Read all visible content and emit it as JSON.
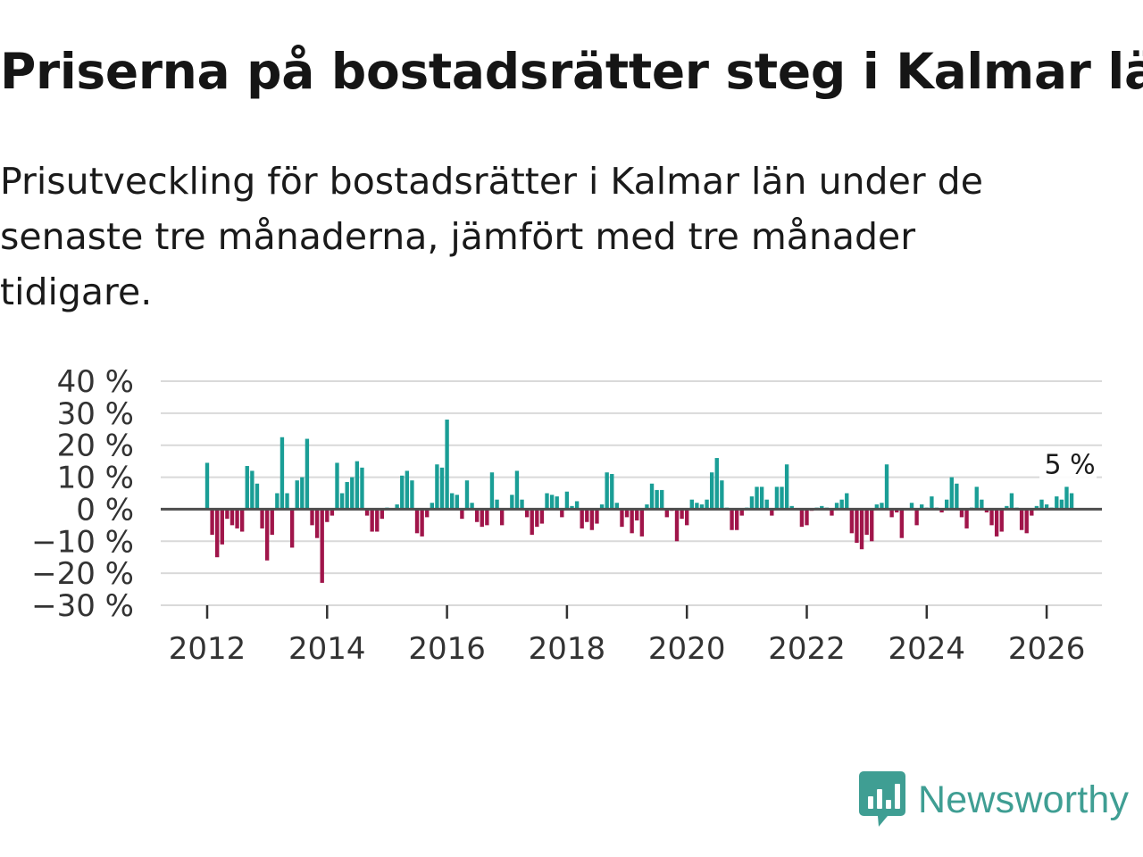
{
  "title": "Priserna på bostadsrätter steg i Kalmar län",
  "subtitle": "Prisutveckling för bostadsrätter i Kalmar län under de senaste tre månaderna, jämfört med tre månader tidigare.",
  "colors": {
    "positive": "#1a9e96",
    "negative": "#a0154a",
    "grid": "#d9d9d9",
    "zero": "#4d4d4d",
    "text": "#333333",
    "logo": "#3f9e93"
  },
  "logo": {
    "text": "Newsworthy",
    "icon": "bar-chart-speech-bubble-icon"
  },
  "chart_data": {
    "type": "bar",
    "title": "Priserna på bostadsrätter steg i Kalmar län",
    "xlabel": "",
    "ylabel": "",
    "ylim": [
      -30,
      40
    ],
    "yticks": [
      40,
      30,
      20,
      10,
      0,
      -10,
      -20,
      -30
    ],
    "ytick_labels": [
      "40 %",
      "30 %",
      "20 %",
      "10 %",
      "0 %",
      "−10 %",
      "−20 %",
      "−30 %"
    ],
    "xticks": [
      "2012",
      "2014",
      "2016",
      "2018",
      "2020",
      "2022",
      "2024",
      "2026"
    ],
    "start": "2012-01",
    "unit": "month",
    "annotation": "5 %",
    "grid": true,
    "values": [
      14.5,
      -8,
      -15,
      -11,
      -3,
      -5,
      -6,
      -7,
      13.5,
      12,
      8,
      -6,
      -16,
      -8,
      5,
      22.5,
      5,
      -12,
      9,
      10,
      22,
      -5,
      -9,
      -23,
      -4,
      -2,
      14.5,
      5,
      8.5,
      10,
      15,
      13,
      -2,
      -7,
      -7,
      -3,
      0.5,
      0,
      1.5,
      10.5,
      12,
      9,
      -7.5,
      -8.5,
      -2.5,
      2,
      14,
      13,
      28,
      5,
      4.5,
      -3,
      9,
      2,
      -4,
      -5.5,
      -5,
      11.5,
      3,
      -5,
      0,
      4.5,
      12,
      3,
      -2.5,
      -8,
      -5.5,
      -4.5,
      5,
      4.5,
      4,
      -2.5,
      5.5,
      1,
      2.5,
      -6,
      -4,
      -6.5,
      -4.5,
      1.5,
      11.5,
      11,
      2,
      -5.5,
      -2.5,
      -7.5,
      -3.5,
      -8.5,
      1.5,
      8,
      6,
      6,
      -2.5,
      -0.5,
      -10,
      -3,
      -5,
      3,
      2,
      1.5,
      3,
      11.5,
      16,
      9,
      0.5,
      -6.5,
      -6.5,
      -2,
      0.5,
      4,
      7,
      7,
      3,
      -2,
      7,
      7,
      14,
      1,
      0,
      -5.5,
      -5,
      -0.5,
      0.5,
      1,
      0.5,
      -2,
      2,
      3,
      5,
      -7.5,
      -10.5,
      -12.5,
      -8,
      -10,
      1.5,
      2,
      14,
      -2.5,
      -1,
      -9,
      0,
      2,
      -5,
      1.5,
      0.5,
      4,
      0.5,
      -1,
      3,
      10,
      8,
      -2.5,
      -6,
      0.5,
      7,
      3,
      -1,
      -5,
      -8.5,
      -7,
      1,
      5,
      0.5,
      -6.5,
      -7.5,
      -2,
      1,
      3,
      1.5,
      0.5,
      4,
      3,
      7,
      5
    ]
  }
}
